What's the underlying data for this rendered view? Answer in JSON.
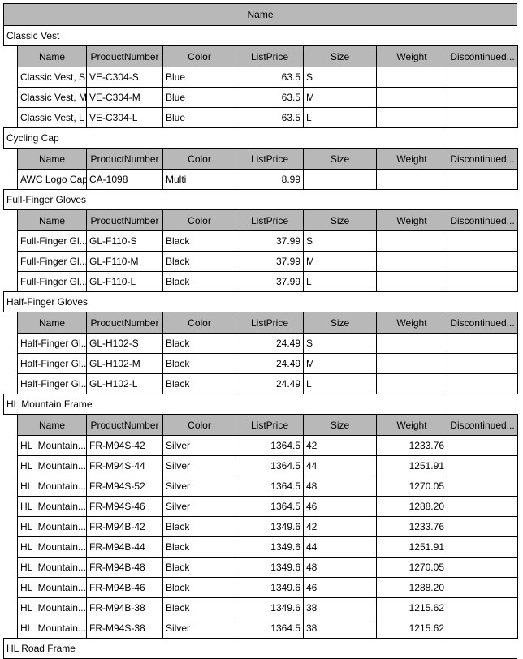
{
  "grid": {
    "outer_header_label": "Name",
    "columns": [
      "Name",
      "ProductNumber",
      "Color",
      "ListPrice",
      "Size",
      "Weight",
      "Discontinued..."
    ],
    "header_bg_color": "#b8b8b8",
    "border_color": "#000000",
    "groups": [
      {
        "name": "Classic Vest",
        "rows": [
          {
            "name": "Classic Vest, S",
            "product_number": "VE-C304-S",
            "color": "Blue",
            "list_price": "63.5",
            "size": "S",
            "weight": "",
            "discontinued": ""
          },
          {
            "name": "Classic Vest, M",
            "product_number": "VE-C304-M",
            "color": "Blue",
            "list_price": "63.5",
            "size": "M",
            "weight": "",
            "discontinued": ""
          },
          {
            "name": "Classic Vest, L",
            "product_number": "VE-C304-L",
            "color": "Blue",
            "list_price": "63.5",
            "size": "L",
            "weight": "",
            "discontinued": ""
          }
        ]
      },
      {
        "name": "Cycling Cap",
        "rows": [
          {
            "name": "AWC Logo Cap",
            "product_number": "CA-1098",
            "color": "Multi",
            "list_price": "8.99",
            "size": "",
            "weight": "",
            "discontinued": ""
          }
        ]
      },
      {
        "name": "Full-Finger Gloves",
        "rows": [
          {
            "name": "Full-Finger Gl...",
            "product_number": "GL-F110-S",
            "color": "Black",
            "list_price": "37.99",
            "size": "S",
            "weight": "",
            "discontinued": ""
          },
          {
            "name": "Full-Finger Gl...",
            "product_number": "GL-F110-M",
            "color": "Black",
            "list_price": "37.99",
            "size": "M",
            "weight": "",
            "discontinued": ""
          },
          {
            "name": "Full-Finger Gl...",
            "product_number": "GL-F110-L",
            "color": "Black",
            "list_price": "37.99",
            "size": "L",
            "weight": "",
            "discontinued": ""
          }
        ]
      },
      {
        "name": "Half-Finger Gloves",
        "rows": [
          {
            "name": "Half-Finger Gl...",
            "product_number": "GL-H102-S",
            "color": "Black",
            "list_price": "24.49",
            "size": "S",
            "weight": "",
            "discontinued": ""
          },
          {
            "name": "Half-Finger Gl...",
            "product_number": "GL-H102-M",
            "color": "Black",
            "list_price": "24.49",
            "size": "M",
            "weight": "",
            "discontinued": ""
          },
          {
            "name": "Half-Finger Gl...",
            "product_number": "GL-H102-L",
            "color": "Black",
            "list_price": "24.49",
            "size": "L",
            "weight": "",
            "discontinued": ""
          }
        ]
      },
      {
        "name": "HL Mountain Frame",
        "rows": [
          {
            "name": "HL  Mountain...",
            "product_number": "FR-M94S-42",
            "color": "Silver",
            "list_price": "1364.5",
            "size": "42",
            "weight": "1233.76",
            "discontinued": ""
          },
          {
            "name": "HL  Mountain...",
            "product_number": "FR-M94S-44",
            "color": "Silver",
            "list_price": "1364.5",
            "size": "44",
            "weight": "1251.91",
            "discontinued": ""
          },
          {
            "name": "HL  Mountain...",
            "product_number": "FR-M94S-52",
            "color": "Silver",
            "list_price": "1364.5",
            "size": "48",
            "weight": "1270.05",
            "discontinued": ""
          },
          {
            "name": "HL  Mountain...",
            "product_number": "FR-M94S-46",
            "color": "Silver",
            "list_price": "1364.5",
            "size": "46",
            "weight": "1288.20",
            "discontinued": ""
          },
          {
            "name": "HL  Mountain...",
            "product_number": "FR-M94B-42",
            "color": "Black",
            "list_price": "1349.6",
            "size": "42",
            "weight": "1233.76",
            "discontinued": ""
          },
          {
            "name": "HL  Mountain...",
            "product_number": "FR-M94B-44",
            "color": "Black",
            "list_price": "1349.6",
            "size": "44",
            "weight": "1251.91",
            "discontinued": ""
          },
          {
            "name": "HL  Mountain...",
            "product_number": "FR-M94B-48",
            "color": "Black",
            "list_price": "1349.6",
            "size": "48",
            "weight": "1270.05",
            "discontinued": ""
          },
          {
            "name": "HL  Mountain...",
            "product_number": "FR-M94B-46",
            "color": "Black",
            "list_price": "1349.6",
            "size": "46",
            "weight": "1288.20",
            "discontinued": ""
          },
          {
            "name": "HL  Mountain...",
            "product_number": "FR-M94B-38",
            "color": "Black",
            "list_price": "1349.6",
            "size": "38",
            "weight": "1215.62",
            "discontinued": ""
          },
          {
            "name": "HL  Mountain...",
            "product_number": "FR-M94S-38",
            "color": "Silver",
            "list_price": "1364.5",
            "size": "38",
            "weight": "1215.62",
            "discontinued": ""
          }
        ]
      },
      {
        "name": "HL Road Frame",
        "rows": []
      }
    ]
  }
}
